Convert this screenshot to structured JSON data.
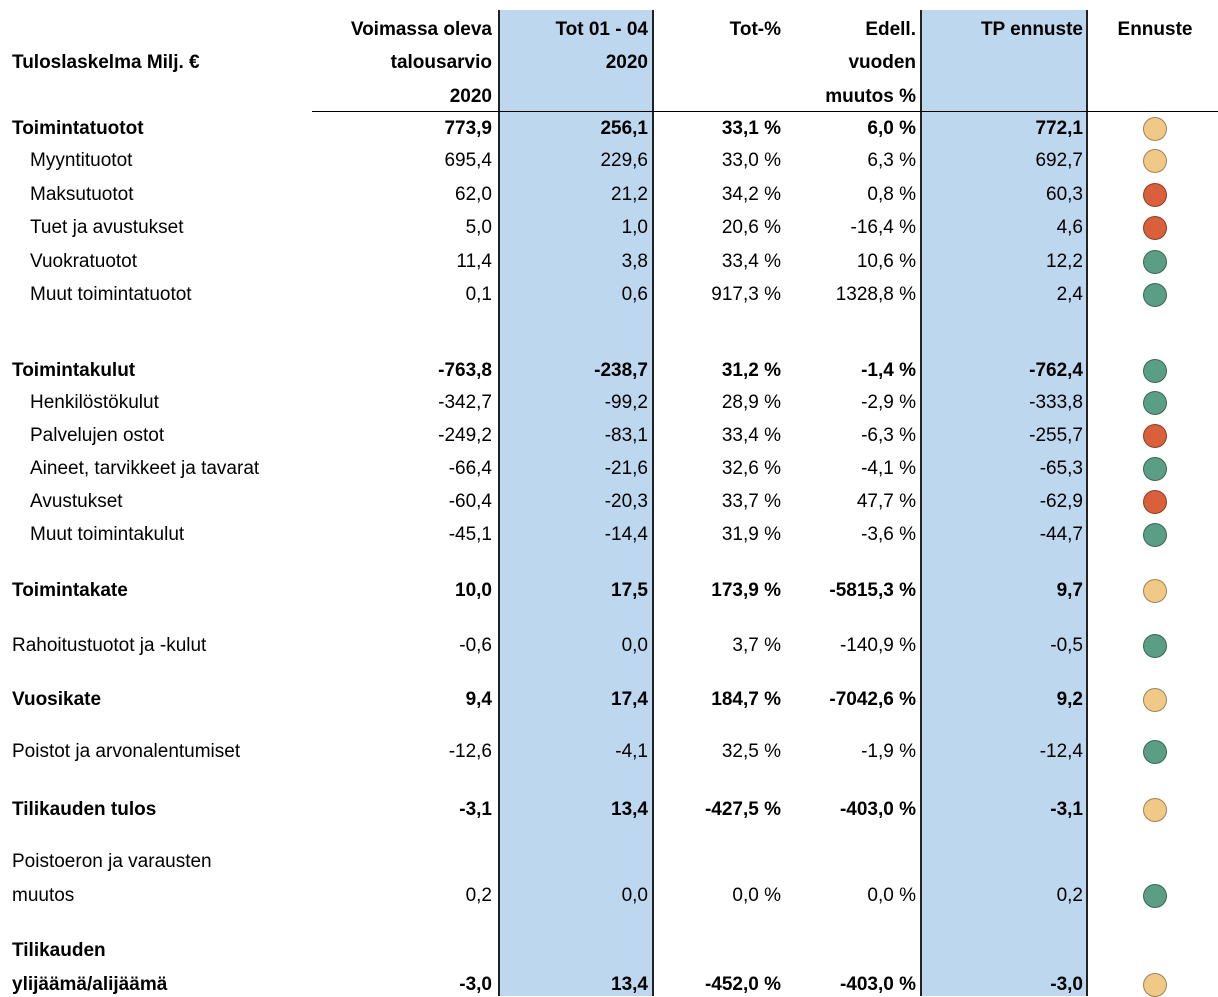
{
  "table": {
    "title": "Tuloslaskelma Milj. €",
    "columns": [
      [
        "Voimassa oleva",
        "talousarvio",
        "2020"
      ],
      [
        "Tot 01 - 04",
        "2020"
      ],
      [
        "Tot-%"
      ],
      [
        "Edell.",
        "vuoden",
        "muutos %"
      ],
      [
        "TP ennuste"
      ],
      [
        "Ennuste"
      ]
    ],
    "rows": [
      {
        "label": [
          "Toimintatuotot"
        ],
        "bold": true,
        "values": [
          "773,9",
          "256,1",
          "33,1 %",
          "6,0 %",
          "772,1"
        ],
        "indicator": "#f0c987"
      },
      {
        "label": [
          "Myyntituotot"
        ],
        "indent": true,
        "values": [
          "695,4",
          "229,6",
          "33,0 %",
          "6,3 %",
          "692,7"
        ],
        "indicator": "#f0c987"
      },
      {
        "label": [
          "Maksutuotot"
        ],
        "indent": true,
        "values": [
          "62,0",
          "21,2",
          "34,2 %",
          "0,8 %",
          "60,3"
        ],
        "indicator": "#d9603b"
      },
      {
        "label": [
          "Tuet ja avustukset"
        ],
        "indent": true,
        "values": [
          "5,0",
          "1,0",
          "20,6 %",
          "-16,4 %",
          "4,6"
        ],
        "indicator": "#d9603b"
      },
      {
        "label": [
          "Vuokratuotot"
        ],
        "indent": true,
        "values": [
          "11,4",
          "3,8",
          "33,4 %",
          "10,6 %",
          "12,2"
        ],
        "indicator": "#5a9e85"
      },
      {
        "label": [
          "Muut toimintatuotot"
        ],
        "indent": true,
        "values": [
          "0,1",
          "0,6",
          "917,3 %",
          "1328,8 %",
          "2,4"
        ],
        "indicator": "#5a9e85"
      },
      {
        "label": [
          "Toimintakulut"
        ],
        "bold": true,
        "values": [
          "-763,8",
          "-238,7",
          "31,2 %",
          "-1,4 %",
          "-762,4"
        ],
        "indicator": "#5a9e85"
      },
      {
        "label": [
          "Henkilöstökulut"
        ],
        "indent": true,
        "values": [
          "-342,7",
          "-99,2",
          "28,9 %",
          "-2,9 %",
          "-333,8"
        ],
        "indicator": "#5a9e85"
      },
      {
        "label": [
          "Palvelujen ostot"
        ],
        "indent": true,
        "values": [
          "-249,2",
          "-83,1",
          "33,4 %",
          "-6,3 %",
          "-255,7"
        ],
        "indicator": "#d9603b"
      },
      {
        "label": [
          "Aineet, tarvikkeet ja tavarat"
        ],
        "indent": true,
        "values": [
          "-66,4",
          "-21,6",
          "32,6 %",
          "-4,1 %",
          "-65,3"
        ],
        "indicator": "#5a9e85"
      },
      {
        "label": [
          "Avustukset"
        ],
        "indent": true,
        "values": [
          "-60,4",
          "-20,3",
          "33,7 %",
          "47,7 %",
          "-62,9"
        ],
        "indicator": "#d9603b"
      },
      {
        "label": [
          "Muut toimintakulut"
        ],
        "indent": true,
        "values": [
          "-45,1",
          "-14,4",
          "31,9 %",
          "-3,6 %",
          "-44,7"
        ],
        "indicator": "#5a9e85"
      },
      {
        "label": [
          "Toimintakate"
        ],
        "bold": true,
        "values": [
          "10,0",
          "17,5",
          "173,9 %",
          "-5815,3 %",
          "9,7"
        ],
        "indicator": "#f0c987"
      },
      {
        "label": [
          "Rahoitustuotot ja -kulut"
        ],
        "values": [
          "-0,6",
          "0,0",
          "3,7 %",
          "-140,9 %",
          "-0,5"
        ],
        "indicator": "#5a9e85"
      },
      {
        "label": [
          "Vuosikate"
        ],
        "bold": true,
        "values": [
          "9,4",
          "17,4",
          "184,7 %",
          "-7042,6 %",
          "9,2"
        ],
        "indicator": "#f0c987"
      },
      {
        "label": [
          "Poistot ja arvonalentumiset"
        ],
        "values": [
          "-12,6",
          "-4,1",
          "32,5 %",
          "-1,9 %",
          "-12,4"
        ],
        "indicator": "#5a9e85"
      },
      {
        "label": [
          "Tilikauden tulos"
        ],
        "bold": true,
        "values": [
          "-3,1",
          "13,4",
          "-427,5 %",
          "-403,0 %",
          "-3,1"
        ],
        "indicator": "#f0c987"
      },
      {
        "label": [
          "Poistoeron ja varausten",
          "muutos"
        ],
        "values": [
          "0,2",
          "0,0",
          "0,0 %",
          "0,0 %",
          "0,2"
        ],
        "indicator": "#5a9e85"
      },
      {
        "label": [
          "Tilikauden",
          "ylijäämä/alijäämä"
        ],
        "bold": true,
        "values": [
          "-3,0",
          "13,4",
          "-452,0 %",
          "-403,0 %",
          "-3,0"
        ],
        "indicator": "#f0c987"
      }
    ]
  }
}
